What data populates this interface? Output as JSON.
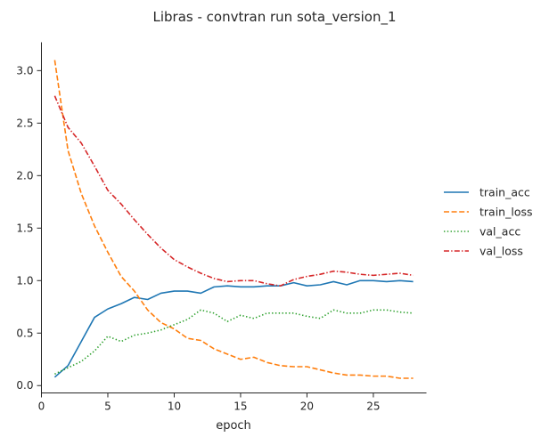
{
  "chart_data": {
    "type": "line",
    "title": "Libras - convtran run sota_version_1",
    "xlabel": "epoch",
    "ylabel": "",
    "xlim": [
      0,
      29
    ],
    "ylim": [
      -0.07,
      3.27
    ],
    "xticks": [
      0,
      5,
      10,
      15,
      20,
      25
    ],
    "xtick_labels": [
      "0",
      "5",
      "10",
      "15",
      "20",
      "25"
    ],
    "yticks": [
      0.0,
      0.5,
      1.0,
      1.5,
      2.0,
      2.5,
      3.0
    ],
    "ytick_labels": [
      "0.0",
      "0.5",
      "1.0",
      "1.5",
      "2.0",
      "2.5",
      "3.0"
    ],
    "grid": false,
    "legend_position": "center-right",
    "x": [
      1,
      2,
      3,
      4,
      5,
      6,
      7,
      8,
      9,
      10,
      11,
      12,
      13,
      14,
      15,
      16,
      17,
      18,
      19,
      20,
      21,
      22,
      23,
      24,
      25,
      26,
      27,
      28
    ],
    "series": [
      {
        "name": "train_acc",
        "color": "#1f77b4",
        "dash": "solid",
        "values": [
          0.08,
          0.19,
          0.42,
          0.65,
          0.73,
          0.78,
          0.84,
          0.82,
          0.88,
          0.9,
          0.9,
          0.88,
          0.94,
          0.95,
          0.94,
          0.94,
          0.95,
          0.95,
          0.98,
          0.95,
          0.96,
          0.99,
          0.96,
          1.0,
          1.0,
          0.99,
          1.0,
          0.99
        ]
      },
      {
        "name": "train_loss",
        "color": "#ff7f0e",
        "dash": "dashed",
        "values": [
          3.1,
          2.24,
          1.83,
          1.52,
          1.27,
          1.04,
          0.9,
          0.72,
          0.6,
          0.54,
          0.45,
          0.43,
          0.35,
          0.3,
          0.25,
          0.27,
          0.22,
          0.19,
          0.18,
          0.18,
          0.15,
          0.12,
          0.1,
          0.1,
          0.09,
          0.09,
          0.07,
          0.07
        ]
      },
      {
        "name": "val_acc",
        "color": "#2ca02c",
        "dash": "dotted",
        "values": [
          0.11,
          0.17,
          0.23,
          0.33,
          0.47,
          0.42,
          0.48,
          0.5,
          0.53,
          0.58,
          0.63,
          0.72,
          0.69,
          0.61,
          0.67,
          0.64,
          0.69,
          0.69,
          0.69,
          0.66,
          0.64,
          0.72,
          0.69,
          0.69,
          0.72,
          0.72,
          0.7,
          0.69
        ]
      },
      {
        "name": "val_loss",
        "color": "#d62728",
        "dash": "dashdot",
        "values": [
          2.76,
          2.46,
          2.31,
          2.09,
          1.86,
          1.73,
          1.58,
          1.44,
          1.31,
          1.2,
          1.13,
          1.07,
          1.02,
          0.99,
          1.0,
          1.0,
          0.97,
          0.95,
          1.01,
          1.04,
          1.06,
          1.09,
          1.08,
          1.06,
          1.05,
          1.06,
          1.07,
          1.05
        ]
      }
    ]
  }
}
